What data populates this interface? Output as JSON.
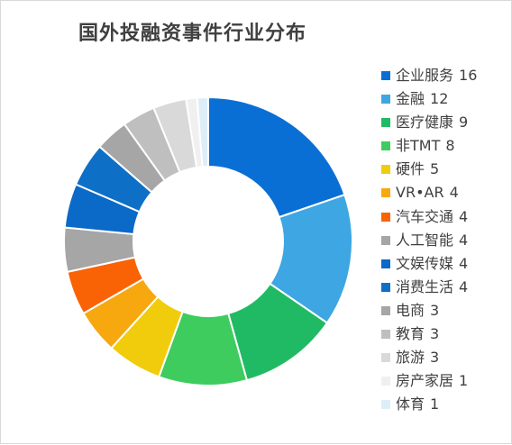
{
  "chart_data": {
    "type": "pie",
    "title": "国外投融资事件行业分布",
    "legend_position": "right",
    "categories": [
      "企业服务",
      "金融",
      "医疗健康",
      "非TMT",
      "硬件",
      "VR•AR",
      "汽车交通",
      "人工智能",
      "文娱传媒",
      "消费生活",
      "电商",
      "教育",
      "旅游",
      "房产家居",
      "体育"
    ],
    "values": [
      16,
      12,
      9,
      8,
      5,
      4,
      4,
      4,
      4,
      4,
      3,
      3,
      3,
      1,
      1
    ],
    "colors": [
      "#0a6fd4",
      "#3ea6e2",
      "#21ba64",
      "#3fcc5e",
      "#f0cc0c",
      "#f7a80e",
      "#fa6206",
      "#a6a6a6",
      "#0b69c8",
      "#0d70c6",
      "#a6a6a6",
      "#bfbfbf",
      "#d9d9d9",
      "#f0f0f0",
      "#ddeef8"
    ]
  }
}
